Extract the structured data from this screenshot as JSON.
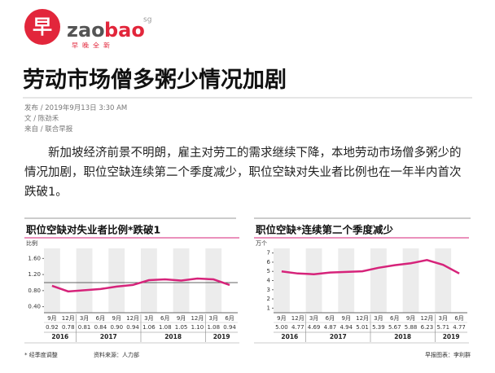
{
  "logo": {
    "mark": "早",
    "name_a": "zao",
    "name_b": "bao",
    "suffix": "sg",
    "tagline": "早晚全新"
  },
  "article": {
    "title": "劳动市场僧多粥少情况加剧",
    "meta": [
      "发布 / 2019年9月13日 3:30 AM",
      "文 / 陈劲禾",
      "来自 / 联合早报"
    ],
    "body": "新加坡经济前景不明朗，雇主对劳工的需求继续下降，本地劳动市场僧多粥少的情况加剧，职位空缺连续第二个季度减少，职位空缺对失业者比例也在一年半内首次跌破1。"
  },
  "chart_data": [
    {
      "type": "line",
      "title": "职位空缺对失业者比例*跌破1",
      "y_label": "比例",
      "categories": [
        "9月",
        "12月",
        "3月",
        "6月",
        "9月",
        "12月",
        "3月",
        "6月",
        "9月",
        "12月",
        "3月",
        "6月"
      ],
      "values": [
        0.92,
        0.78,
        0.81,
        0.84,
        0.9,
        0.94,
        1.06,
        1.08,
        1.05,
        1.1,
        1.08,
        0.94
      ],
      "value_labels": [
        "0.92",
        "0.78",
        "0.81",
        "0.84",
        "0.90",
        "0.94",
        "1.06",
        "1.08",
        "1.05",
        "1.10",
        "1.08",
        "0.94"
      ],
      "groups": [
        {
          "label": "2016",
          "size": 2
        },
        {
          "label": "2017",
          "size": 4
        },
        {
          "label": "2018",
          "size": 4
        },
        {
          "label": "2019",
          "size": 2
        }
      ],
      "reference": 1,
      "color": "#d6237a",
      "ylim": [
        0.25,
        1.85
      ],
      "yticks": [
        {
          "value": 0.4,
          "label": "0.40"
        },
        {
          "value": 0.8,
          "label": "0.80"
        },
        {
          "value": 1.2,
          "label": "1.20"
        },
        {
          "value": 1.6,
          "label": "1.60"
        }
      ]
    },
    {
      "type": "line",
      "title": "职位空缺*连续第二个季度减少",
      "y_label": "万个",
      "categories": [
        "9月",
        "12月",
        "3月",
        "6月",
        "9月",
        "12月",
        "3月",
        "6月",
        "9月",
        "12月",
        "3月",
        "6月"
      ],
      "values": [
        5,
        4.77,
        4.69,
        4.87,
        4.94,
        5.01,
        5.39,
        5.67,
        5.88,
        6.23,
        5.71,
        4.77
      ],
      "value_labels": [
        "5.00",
        "4.77",
        "4.69",
        "4.87",
        "4.94",
        "5.01",
        "5.39",
        "5.67",
        "5.88",
        "6.23",
        "5.71",
        "4.77"
      ],
      "groups": [
        {
          "label": "2016",
          "size": 2
        },
        {
          "label": "2017",
          "size": 4
        },
        {
          "label": "2018",
          "size": 4
        },
        {
          "label": "2019",
          "size": 2
        }
      ],
      "color": "#d6237a",
      "ylim": [
        0.5,
        7.5
      ],
      "yticks": [
        1,
        2,
        3,
        4,
        5,
        6,
        7
      ]
    }
  ],
  "notes": {
    "adjusted": "* 经季度调整",
    "source": "资料来源：人力部",
    "credit": "早报图表：李利群"
  }
}
